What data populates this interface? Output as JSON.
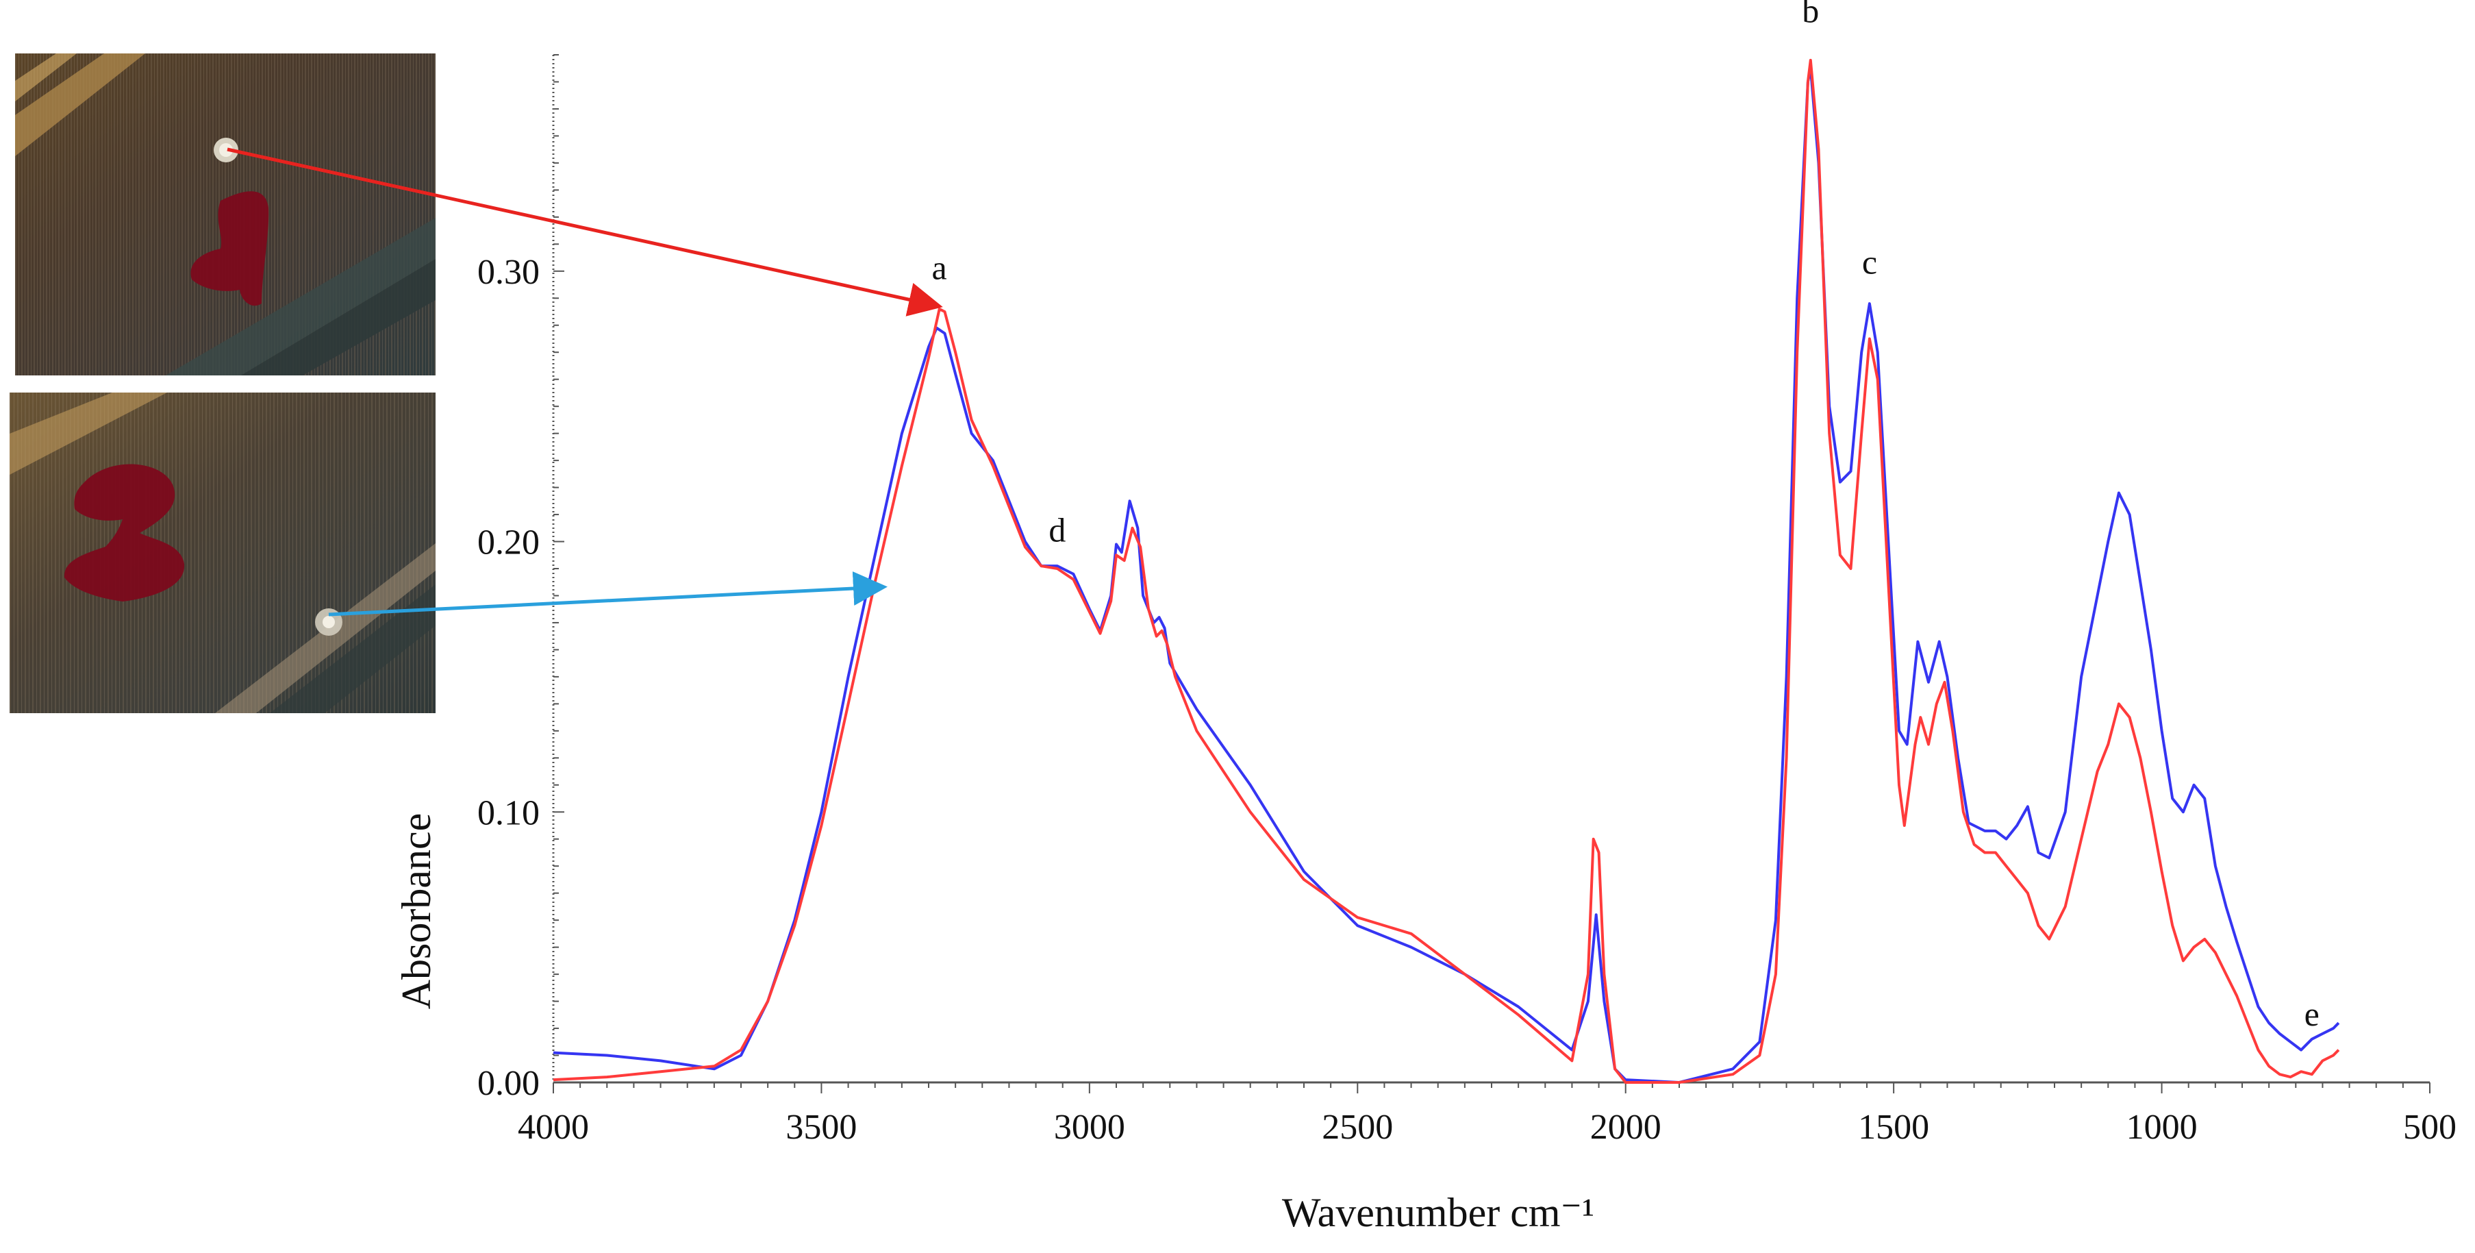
{
  "colors": {
    "series_red": "#ff3b3b",
    "series_blue": "#3535f2",
    "arrow_red": "#e8231f",
    "arrow_blue": "#2aa0dd",
    "stain_red": "#7c0a1c"
  },
  "photos": [
    {
      "name": "sample-photo-1",
      "marking": "1"
    },
    {
      "name": "sample-photo-2",
      "marking": "2"
    }
  ],
  "chart_data": {
    "type": "line",
    "xlabel": "Wavenumber cm⁻¹",
    "ylabel": "Absorbance",
    "xlim": [
      4000,
      500
    ],
    "ylim": [
      0.0,
      0.38
    ],
    "x_reversed": true,
    "xticks": [
      4000,
      3500,
      3000,
      2500,
      2000,
      1500,
      1000,
      500
    ],
    "yticks": [
      0.0,
      0.1,
      0.2,
      0.3
    ],
    "ytick_labels": [
      "0.00",
      "0.10",
      "0.20",
      "0.30"
    ],
    "series": [
      {
        "color": "#3535f2",
        "points": [
          [
            4000,
            0.011
          ],
          [
            3900,
            0.01
          ],
          [
            3800,
            0.008
          ],
          [
            3700,
            0.005
          ],
          [
            3650,
            0.01
          ],
          [
            3600,
            0.03
          ],
          [
            3550,
            0.06
          ],
          [
            3500,
            0.1
          ],
          [
            3450,
            0.15
          ],
          [
            3400,
            0.195
          ],
          [
            3350,
            0.24
          ],
          [
            3300,
            0.272
          ],
          [
            3285,
            0.279
          ],
          [
            3270,
            0.277
          ],
          [
            3250,
            0.262
          ],
          [
            3220,
            0.24
          ],
          [
            3180,
            0.23
          ],
          [
            3150,
            0.215
          ],
          [
            3120,
            0.2
          ],
          [
            3090,
            0.191
          ],
          [
            3060,
            0.191
          ],
          [
            3030,
            0.188
          ],
          [
            3000,
            0.175
          ],
          [
            2980,
            0.167
          ],
          [
            2960,
            0.18
          ],
          [
            2950,
            0.199
          ],
          [
            2940,
            0.196
          ],
          [
            2925,
            0.215
          ],
          [
            2910,
            0.205
          ],
          [
            2900,
            0.18
          ],
          [
            2880,
            0.17
          ],
          [
            2870,
            0.172
          ],
          [
            2860,
            0.168
          ],
          [
            2850,
            0.155
          ],
          [
            2800,
            0.138
          ],
          [
            2700,
            0.11
          ],
          [
            2600,
            0.078
          ],
          [
            2500,
            0.058
          ],
          [
            2400,
            0.05
          ],
          [
            2300,
            0.04
          ],
          [
            2200,
            0.028
          ],
          [
            2100,
            0.012
          ],
          [
            2070,
            0.03
          ],
          [
            2055,
            0.062
          ],
          [
            2040,
            0.03
          ],
          [
            2020,
            0.005
          ],
          [
            2000,
            0.001
          ],
          [
            1900,
            0.0
          ],
          [
            1800,
            0.005
          ],
          [
            1750,
            0.015
          ],
          [
            1720,
            0.06
          ],
          [
            1700,
            0.15
          ],
          [
            1680,
            0.29
          ],
          [
            1660,
            0.37
          ],
          [
            1655,
            0.375
          ],
          [
            1640,
            0.34
          ],
          [
            1620,
            0.25
          ],
          [
            1600,
            0.222
          ],
          [
            1580,
            0.226
          ],
          [
            1560,
            0.27
          ],
          [
            1545,
            0.288
          ],
          [
            1530,
            0.27
          ],
          [
            1510,
            0.2
          ],
          [
            1490,
            0.13
          ],
          [
            1475,
            0.125
          ],
          [
            1455,
            0.163
          ],
          [
            1435,
            0.148
          ],
          [
            1415,
            0.163
          ],
          [
            1400,
            0.15
          ],
          [
            1380,
            0.12
          ],
          [
            1360,
            0.096
          ],
          [
            1330,
            0.093
          ],
          [
            1310,
            0.093
          ],
          [
            1290,
            0.09
          ],
          [
            1270,
            0.095
          ],
          [
            1250,
            0.102
          ],
          [
            1230,
            0.085
          ],
          [
            1210,
            0.083
          ],
          [
            1180,
            0.1
          ],
          [
            1150,
            0.15
          ],
          [
            1120,
            0.18
          ],
          [
            1100,
            0.2
          ],
          [
            1080,
            0.218
          ],
          [
            1060,
            0.21
          ],
          [
            1040,
            0.185
          ],
          [
            1020,
            0.16
          ],
          [
            1000,
            0.13
          ],
          [
            980,
            0.105
          ],
          [
            960,
            0.1
          ],
          [
            940,
            0.11
          ],
          [
            920,
            0.105
          ],
          [
            900,
            0.08
          ],
          [
            880,
            0.065
          ],
          [
            860,
            0.052
          ],
          [
            840,
            0.04
          ],
          [
            820,
            0.028
          ],
          [
            800,
            0.022
          ],
          [
            780,
            0.018
          ],
          [
            760,
            0.015
          ],
          [
            740,
            0.012
          ],
          [
            720,
            0.016
          ],
          [
            700,
            0.018
          ],
          [
            680,
            0.02
          ],
          [
            670,
            0.022
          ]
        ]
      },
      {
        "color": "#ff3b3b",
        "points": [
          [
            4000,
            0.001
          ],
          [
            3900,
            0.002
          ],
          [
            3800,
            0.004
          ],
          [
            3700,
            0.006
          ],
          [
            3650,
            0.012
          ],
          [
            3600,
            0.03
          ],
          [
            3550,
            0.058
          ],
          [
            3500,
            0.095
          ],
          [
            3450,
            0.14
          ],
          [
            3400,
            0.185
          ],
          [
            3350,
            0.228
          ],
          [
            3300,
            0.268
          ],
          [
            3280,
            0.286
          ],
          [
            3270,
            0.285
          ],
          [
            3250,
            0.27
          ],
          [
            3220,
            0.245
          ],
          [
            3180,
            0.228
          ],
          [
            3150,
            0.213
          ],
          [
            3120,
            0.198
          ],
          [
            3090,
            0.191
          ],
          [
            3060,
            0.19
          ],
          [
            3030,
            0.186
          ],
          [
            3000,
            0.174
          ],
          [
            2980,
            0.166
          ],
          [
            2960,
            0.178
          ],
          [
            2950,
            0.195
          ],
          [
            2935,
            0.193
          ],
          [
            2920,
            0.205
          ],
          [
            2905,
            0.198
          ],
          [
            2890,
            0.175
          ],
          [
            2875,
            0.165
          ],
          [
            2865,
            0.167
          ],
          [
            2855,
            0.162
          ],
          [
            2840,
            0.15
          ],
          [
            2800,
            0.13
          ],
          [
            2700,
            0.1
          ],
          [
            2600,
            0.075
          ],
          [
            2500,
            0.061
          ],
          [
            2400,
            0.055
          ],
          [
            2300,
            0.04
          ],
          [
            2200,
            0.025
          ],
          [
            2100,
            0.008
          ],
          [
            2070,
            0.04
          ],
          [
            2060,
            0.09
          ],
          [
            2050,
            0.085
          ],
          [
            2040,
            0.04
          ],
          [
            2020,
            0.005
          ],
          [
            2000,
            0.0
          ],
          [
            1900,
            0.0
          ],
          [
            1800,
            0.003
          ],
          [
            1750,
            0.01
          ],
          [
            1720,
            0.04
          ],
          [
            1700,
            0.12
          ],
          [
            1680,
            0.27
          ],
          [
            1660,
            0.37
          ],
          [
            1655,
            0.378
          ],
          [
            1640,
            0.345
          ],
          [
            1620,
            0.24
          ],
          [
            1600,
            0.195
          ],
          [
            1580,
            0.19
          ],
          [
            1560,
            0.24
          ],
          [
            1545,
            0.275
          ],
          [
            1530,
            0.26
          ],
          [
            1510,
            0.185
          ],
          [
            1490,
            0.11
          ],
          [
            1480,
            0.095
          ],
          [
            1460,
            0.125
          ],
          [
            1450,
            0.135
          ],
          [
            1435,
            0.125
          ],
          [
            1420,
            0.14
          ],
          [
            1405,
            0.148
          ],
          [
            1390,
            0.13
          ],
          [
            1370,
            0.1
          ],
          [
            1350,
            0.088
          ],
          [
            1330,
            0.085
          ],
          [
            1310,
            0.085
          ],
          [
            1290,
            0.08
          ],
          [
            1270,
            0.075
          ],
          [
            1250,
            0.07
          ],
          [
            1230,
            0.058
          ],
          [
            1210,
            0.053
          ],
          [
            1180,
            0.065
          ],
          [
            1150,
            0.09
          ],
          [
            1120,
            0.115
          ],
          [
            1100,
            0.125
          ],
          [
            1080,
            0.14
          ],
          [
            1060,
            0.135
          ],
          [
            1040,
            0.12
          ],
          [
            1020,
            0.1
          ],
          [
            1000,
            0.078
          ],
          [
            980,
            0.058
          ],
          [
            960,
            0.045
          ],
          [
            940,
            0.05
          ],
          [
            920,
            0.053
          ],
          [
            900,
            0.048
          ],
          [
            880,
            0.04
          ],
          [
            860,
            0.032
          ],
          [
            840,
            0.022
          ],
          [
            820,
            0.012
          ],
          [
            800,
            0.006
          ],
          [
            780,
            0.003
          ],
          [
            760,
            0.002
          ],
          [
            740,
            0.004
          ],
          [
            720,
            0.003
          ],
          [
            700,
            0.008
          ],
          [
            680,
            0.01
          ],
          [
            670,
            0.012
          ]
        ]
      }
    ],
    "annotations": [
      {
        "label": "a",
        "x": 3280,
        "y": 0.297
      },
      {
        "label": "b",
        "x": 1655,
        "y": 0.392
      },
      {
        "label": "c",
        "x": 1545,
        "y": 0.299
      },
      {
        "label": "d",
        "x": 3060,
        "y": 0.2
      },
      {
        "label": "e",
        "x": 720,
        "y": 0.021
      }
    ],
    "grid": false
  }
}
